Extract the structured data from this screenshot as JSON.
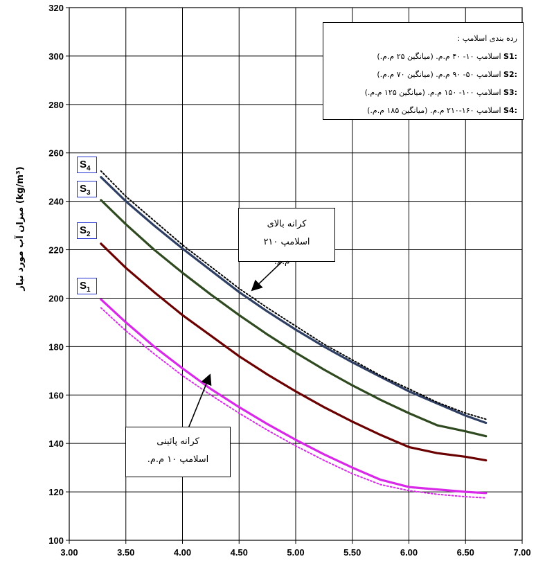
{
  "chart_data": {
    "type": "line",
    "xlim": [
      3.0,
      7.0
    ],
    "ylim": [
      100,
      320
    ],
    "x_ticks": [
      "3.00",
      "3.50",
      "4.00",
      "4.50",
      "5.00",
      "5.50",
      "6.00",
      "6.50",
      "7.00"
    ],
    "y_ticks": [
      "100",
      "120",
      "140",
      "160",
      "180",
      "200",
      "220",
      "240",
      "260",
      "280",
      "300",
      "320"
    ],
    "ylabel": "میزان آب مورد نیاز (kg/m³)",
    "grid": true,
    "x": [
      3.28,
      3.5,
      3.75,
      4.0,
      4.25,
      4.5,
      4.75,
      5.0,
      5.25,
      5.5,
      5.75,
      6.0,
      6.25,
      6.5,
      6.68
    ],
    "series": [
      {
        "name": "S4",
        "color": "#2e3f63",
        "style": "solid",
        "values": [
          250,
          240,
          230,
          220.5,
          211.5,
          202.5,
          194.5,
          187,
          180,
          173.5,
          167.5,
          161.5,
          156.5,
          151.5,
          148.5
        ]
      },
      {
        "name": "S3",
        "color": "#2f4a20",
        "style": "solid",
        "values": [
          240.5,
          230.5,
          220,
          210.5,
          201.5,
          193,
          185,
          177.5,
          170.5,
          164,
          158,
          152.5,
          147.5,
          145,
          143
        ]
      },
      {
        "name": "S2",
        "color": "#6b0000",
        "style": "solid",
        "values": [
          222.5,
          212.5,
          202.5,
          193,
          184.5,
          176,
          168.5,
          161.5,
          155,
          149,
          143.5,
          138.5,
          136,
          134.5,
          133
        ]
      },
      {
        "name": "S1",
        "color": "#d829e8",
        "style": "solid",
        "values": [
          199.5,
          190,
          180,
          171,
          162.5,
          155,
          148,
          141.5,
          135.5,
          130,
          125,
          122,
          121,
          120,
          119.5
        ]
      },
      {
        "name": "upper",
        "color": "#000000",
        "style": "dotted",
        "values": [
          252.5,
          242,
          232,
          222,
          213,
          204,
          196,
          188.5,
          181,
          174.5,
          168,
          162.5,
          157,
          152.5,
          150
        ]
      },
      {
        "name": "lower",
        "color": "#d829e8",
        "style": "dotted",
        "values": [
          196,
          186.5,
          177,
          168,
          160,
          152.5,
          145.5,
          139,
          133,
          127.5,
          123,
          120.5,
          119,
          118,
          117.5
        ]
      }
    ],
    "arrows": [
      {
        "from": [
          4.9,
          216
        ],
        "to": [
          4.62,
          203.5
        ]
      },
      {
        "from": [
          3.98,
          138
        ],
        "to": [
          4.24,
          168
        ]
      }
    ]
  },
  "series_labels": [
    {
      "name": "S4",
      "letter": "S",
      "sub": "4",
      "y": 255
    },
    {
      "name": "S3",
      "letter": "S",
      "sub": "3",
      "y": 245
    },
    {
      "name": "S2",
      "letter": "S",
      "sub": "2",
      "y": 228
    },
    {
      "name": "S1",
      "letter": "S",
      "sub": "1",
      "y": 205
    }
  ],
  "legend": {
    "title": "رده بندی اسلامپ :",
    "items": [
      {
        "code": "S1:",
        "text": "اسلامپ ۱۰- ۴۰ م.م. (میانگین ۲۵ م.م.)"
      },
      {
        "code": "S2:",
        "text": "اسلامپ ۵۰- ۹۰ م.م. (میانگین ۷۰ م.م.)"
      },
      {
        "code": "S3:",
        "text": "اسلامپ ۱۰۰- ۱۵۰ م.م. (میانگین ۱۲۵ م.م.)"
      },
      {
        "code": "S4:",
        "text": "اسلامپ ۱۶۰-۲۱۰ م.م. (میانگین ۱۸۵ م.م.)"
      }
    ]
  },
  "annotations": {
    "upper_line1": "کرانه بالای",
    "upper_line2": "اسلامپ ۲۱۰",
    "upper_line3": "م.م.",
    "lower_line1": "کرانه پائینی",
    "lower_line2": "اسلامپ ۱۰ م.م."
  }
}
